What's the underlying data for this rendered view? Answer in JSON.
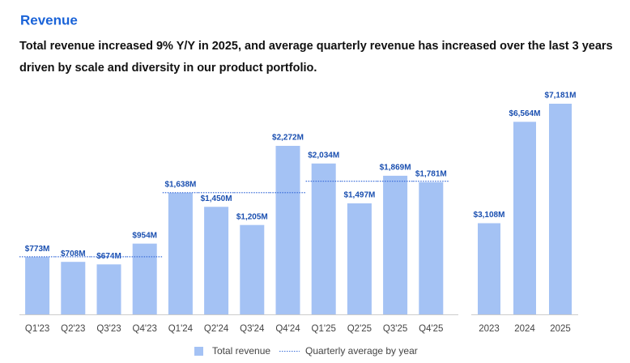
{
  "chart_data": [
    {
      "type": "bar",
      "title": "Revenue",
      "subtitle": "Total revenue increased 9% Y/Y in 2025, and average quarterly revenue has increased over the last 3 years driven by scale and diversity in our product portfolio.",
      "categories": [
        "Q1'23",
        "Q2'23",
        "Q3'23",
        "Q4'23",
        "Q1'24",
        "Q2'24",
        "Q3'24",
        "Q4'24",
        "Q1'25",
        "Q2'25",
        "Q3'25",
        "Q4'25"
      ],
      "series": [
        {
          "name": "Total revenue",
          "type": "bar",
          "color": "#a4c2f4",
          "values": [
            773,
            708,
            674,
            954,
            1638,
            1450,
            1205,
            2272,
            2034,
            1497,
            1869,
            1781
          ],
          "value_labels": [
            "$773M",
            "$708M",
            "$674M",
            "$954M",
            "$1,638M",
            "$1,450M",
            "$1,205M",
            "$2,272M",
            "$2,034M",
            "$1,497M",
            "$1,869M",
            "$1,781M"
          ]
        },
        {
          "name": "Quarterly average by year",
          "type": "line",
          "color": "#3d6fd9",
          "values": [
            777.25,
            777.25,
            777.25,
            777.25,
            1641.25,
            1641.25,
            1641.25,
            1641.25,
            1795.25,
            1795.25,
            1795.25,
            1795.25
          ]
        }
      ]
    },
    {
      "type": "bar",
      "categories": [
        "2023",
        "2024",
        "2025"
      ],
      "values": [
        3108,
        6564,
        7181
      ],
      "value_labels": [
        "$3,108M",
        "$6,564M",
        "$7,181M"
      ],
      "color": "#a4c2f4"
    }
  ]
}
